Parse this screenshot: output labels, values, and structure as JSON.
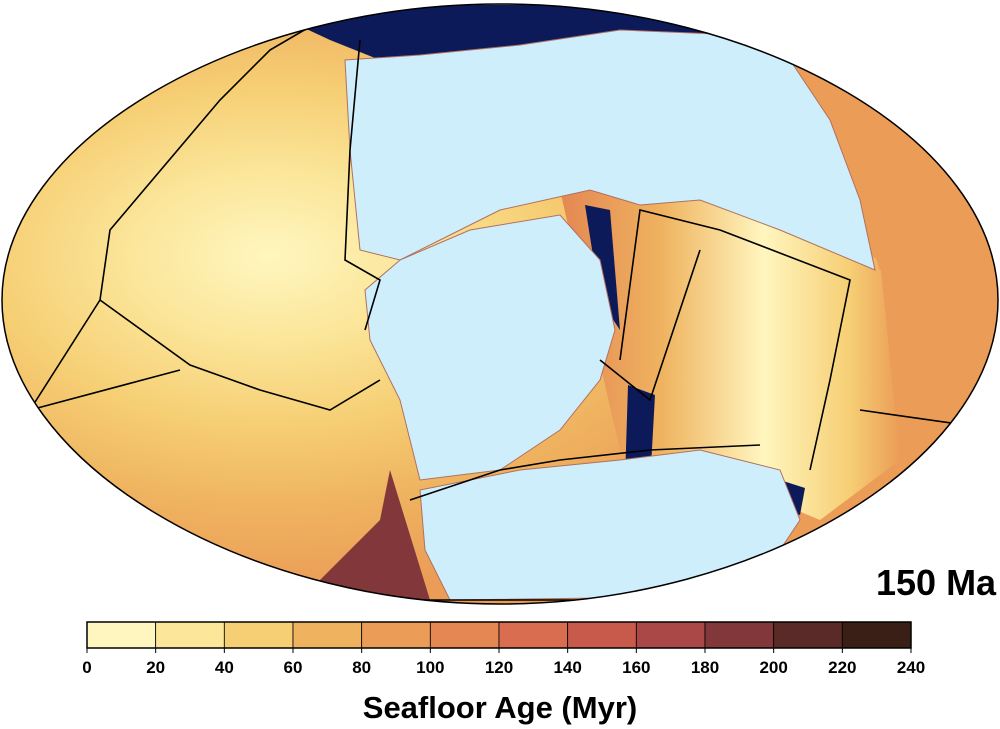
{
  "map": {
    "age_label": "150 Ma",
    "colors": {
      "continent": "#cfeefb",
      "ocean_fallback": "#f3b060",
      "trench_deep": "#0d1a5a",
      "plate_boundary": "#000000",
      "terrane_lines": "#b07060"
    }
  },
  "colorbar": {
    "title": "Seafloor Age (Myr)",
    "range": [
      0,
      240
    ],
    "tick_values": [
      0,
      20,
      40,
      60,
      80,
      100,
      120,
      140,
      160,
      180,
      200,
      220,
      240
    ],
    "tick_labels": [
      "0",
      "20",
      "40",
      "60",
      "80",
      "100",
      "120",
      "140",
      "160",
      "180",
      "200",
      "220",
      "240"
    ],
    "bin_colors": [
      "#fff6bf",
      "#fbe69a",
      "#f6cf75",
      "#efb360",
      "#eb9d57",
      "#e48753",
      "#d86d4f",
      "#c85a4c",
      "#a94846",
      "#82383a",
      "#5a2a28",
      "#3a1f17"
    ]
  }
}
